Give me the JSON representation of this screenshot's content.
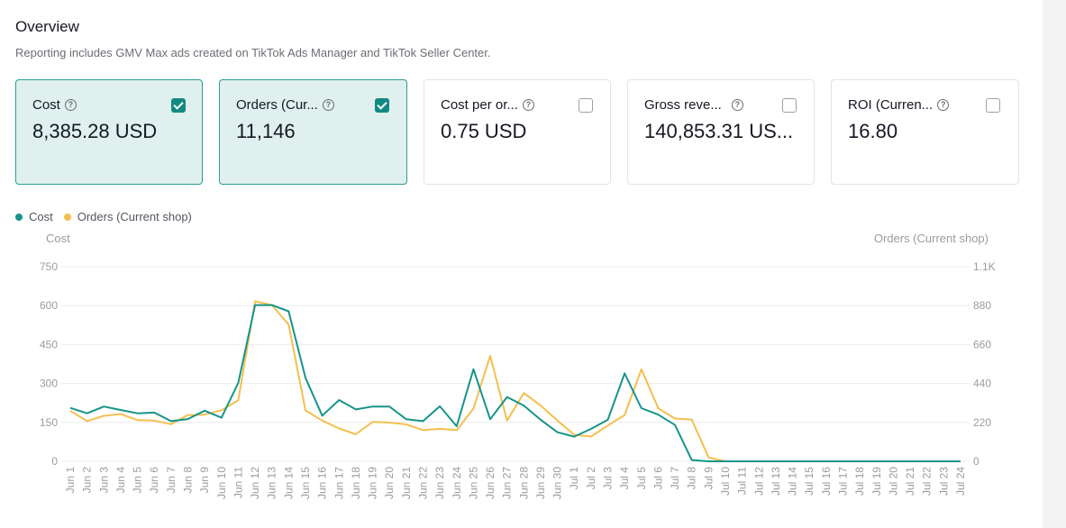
{
  "header": {
    "title": "Overview",
    "subtitle": "Reporting includes GMV Max ads created on TikTok Ads Manager and TikTok Seller Center."
  },
  "metrics": [
    {
      "label": "Cost",
      "value": "8,385.28 USD",
      "selected": true
    },
    {
      "label": "Orders (Cur...",
      "value": "11,146",
      "selected": true
    },
    {
      "label": "Cost per or...",
      "value": "0.75 USD",
      "selected": false
    },
    {
      "label": "Gross reve...",
      "value": "140,853.31 US...",
      "selected": false
    },
    {
      "label": "ROI (Curren...",
      "value": "16.80",
      "selected": false
    }
  ],
  "colors": {
    "cost": "#17948a",
    "orders": "#f4bf4f",
    "selected_bg": "#dff0ee",
    "selected_border": "#2a9d93"
  },
  "chart_data": {
    "type": "line",
    "legend": [
      "Cost",
      "Orders (Current shop)"
    ],
    "y_left_label": "Cost",
    "y_right_label": "Orders (Current shop)",
    "y_left_ticks": [
      "750",
      "600",
      "450",
      "300",
      "150",
      "0"
    ],
    "y_right_ticks": [
      "1.1K",
      "880",
      "660",
      "440",
      "220",
      "0"
    ],
    "y_left_lim": [
      0,
      750
    ],
    "y_right_lim": [
      0,
      1100
    ],
    "categories": [
      "Jun 1",
      "Jun 2",
      "Jun 3",
      "Jun 4",
      "Jun 5",
      "Jun 6",
      "Jun 7",
      "Jun 8",
      "Jun 9",
      "Jun 10",
      "Jun 11",
      "Jun 12",
      "Jun 13",
      "Jun 14",
      "Jun 15",
      "Jun 16",
      "Jun 17",
      "Jun 18",
      "Jun 19",
      "Jun 20",
      "Jun 21",
      "Jun 22",
      "Jun 23",
      "Jun 24",
      "Jun 25",
      "Jun 26",
      "Jun 27",
      "Jun 28",
      "Jun 29",
      "Jun 30",
      "Jul 1",
      "Jul 2",
      "Jul 3",
      "Jul 4",
      "Jul 5",
      "Jul 6",
      "Jul 7",
      "Jul 8",
      "Jul 9",
      "Jul 10",
      "Jul 11",
      "Jul 12",
      "Jul 13",
      "Jul 14",
      "Jul 15",
      "Jul 16",
      "Jul 17",
      "Jul 18",
      "Jul 19",
      "Jul 20",
      "Jul 21",
      "Jul 22",
      "Jul 23",
      "Jul 24"
    ],
    "series": [
      {
        "name": "Cost",
        "axis": "left",
        "values": [
          206,
          185,
          211,
          198,
          185,
          188,
          155,
          163,
          195,
          168,
          302,
          602,
          602,
          578,
          322,
          176,
          236,
          200,
          211,
          211,
          162,
          155,
          212,
          135,
          355,
          162,
          248,
          215,
          160,
          112,
          95,
          125,
          160,
          339,
          205,
          180,
          140,
          5,
          0,
          0,
          0,
          0,
          0,
          0,
          0,
          0,
          0,
          0,
          0,
          0,
          0,
          0,
          0,
          0
        ]
      },
      {
        "name": "Orders (Current shop)",
        "axis": "left_scaled",
        "values": [
          286,
          227,
          257,
          267,
          233,
          230,
          210,
          262,
          264,
          289,
          345,
          905,
          883,
          773,
          288,
          230,
          186,
          153,
          223,
          219,
          209,
          176,
          184,
          176,
          298,
          596,
          230,
          386,
          315,
          230,
          150,
          140,
          202,
          262,
          520,
          300,
          242,
          236,
          22,
          0,
          0,
          0,
          0,
          0,
          0,
          0,
          0,
          0,
          0,
          0,
          0,
          0,
          0,
          0
        ]
      }
    ]
  }
}
